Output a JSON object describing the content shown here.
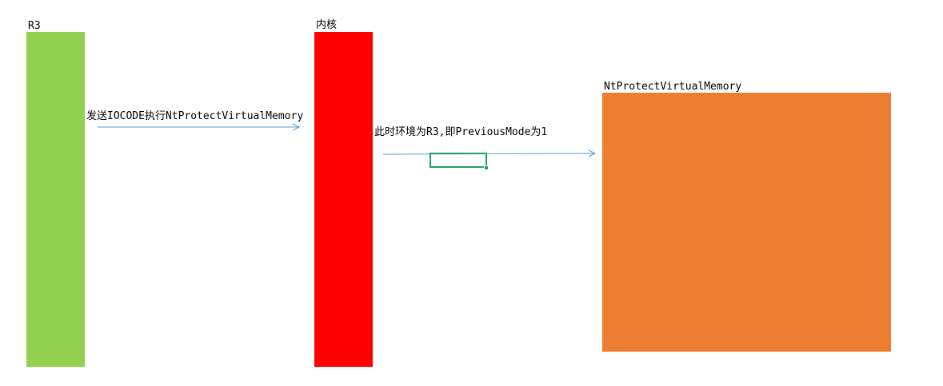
{
  "diagram": {
    "r3": {
      "label": "R3",
      "color": "#92d050"
    },
    "kernel": {
      "label": "内核",
      "color": "#ff0000"
    },
    "target": {
      "label": "NtProtectVirtualMemory",
      "color": "#ed7d31"
    },
    "arrows": [
      {
        "label": "发送IOCODE执行NtProtectVirtualMemory",
        "color": "#5b9bd5"
      },
      {
        "label": "此时环境为R3,即PreviousMode为1",
        "color": "#5b9bd5"
      }
    ],
    "selection_color": "#21a366"
  }
}
